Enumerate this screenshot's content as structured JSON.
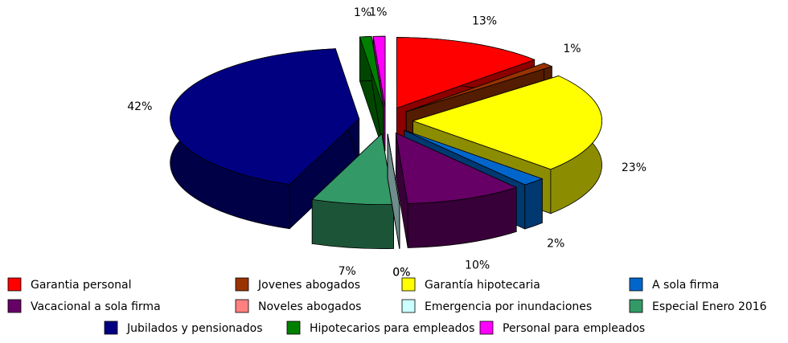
{
  "chart_data": {
    "type": "pie3d",
    "categories": [
      "Garantia personal",
      "Jovenes abogados",
      "Garantía hipotecaria",
      "A sola firma",
      "Vacacional a sola firma",
      "Noveles abogados",
      "Emergencia por inundaciones",
      "Especial Enero 2016",
      "Jubilados y pensionados",
      "Hipotecarios para empleados",
      "Personal para empleados"
    ],
    "values": [
      13,
      1,
      23,
      2,
      10,
      0,
      0,
      7,
      42,
      1,
      1
    ],
    "value_labels": [
      "13%",
      "1%",
      "23%",
      "2%",
      "10%",
      "0%",
      "0%",
      "7%",
      "42%",
      "1%",
      "1%"
    ],
    "colors": [
      "#ff0000",
      "#993300",
      "#ffff00",
      "#0066cc",
      "#660066",
      "#ff8080",
      "#ccffff",
      "#339966",
      "#000080",
      "#008000",
      "#ff00ff"
    ]
  }
}
